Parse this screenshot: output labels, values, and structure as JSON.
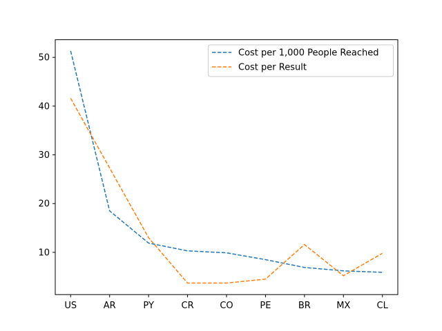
{
  "chart_data": {
    "type": "line",
    "title": "",
    "xlabel": "",
    "ylabel": "",
    "categories": [
      "US",
      "AR",
      "PY",
      "CR",
      "CO",
      "PE",
      "BR",
      "MX",
      "CL"
    ],
    "ylim": [
      1.33,
      53.62
    ],
    "yticks": [
      10,
      20,
      30,
      40,
      50
    ],
    "grid": false,
    "legend_position": "top-right",
    "series": [
      {
        "name": "Cost per 1,000 People Reached",
        "color": "#1f77b4",
        "linestyle": "dashed",
        "values": [
          51.3,
          18.5,
          11.9,
          10.3,
          9.9,
          8.5,
          6.9,
          6.2,
          5.9
        ]
      },
      {
        "name": "Cost per Result",
        "color": "#ff7f0e",
        "linestyle": "dashed",
        "values": [
          41.6,
          27.3,
          13.0,
          3.7,
          3.7,
          4.5,
          11.6,
          5.2,
          9.8
        ]
      }
    ]
  }
}
